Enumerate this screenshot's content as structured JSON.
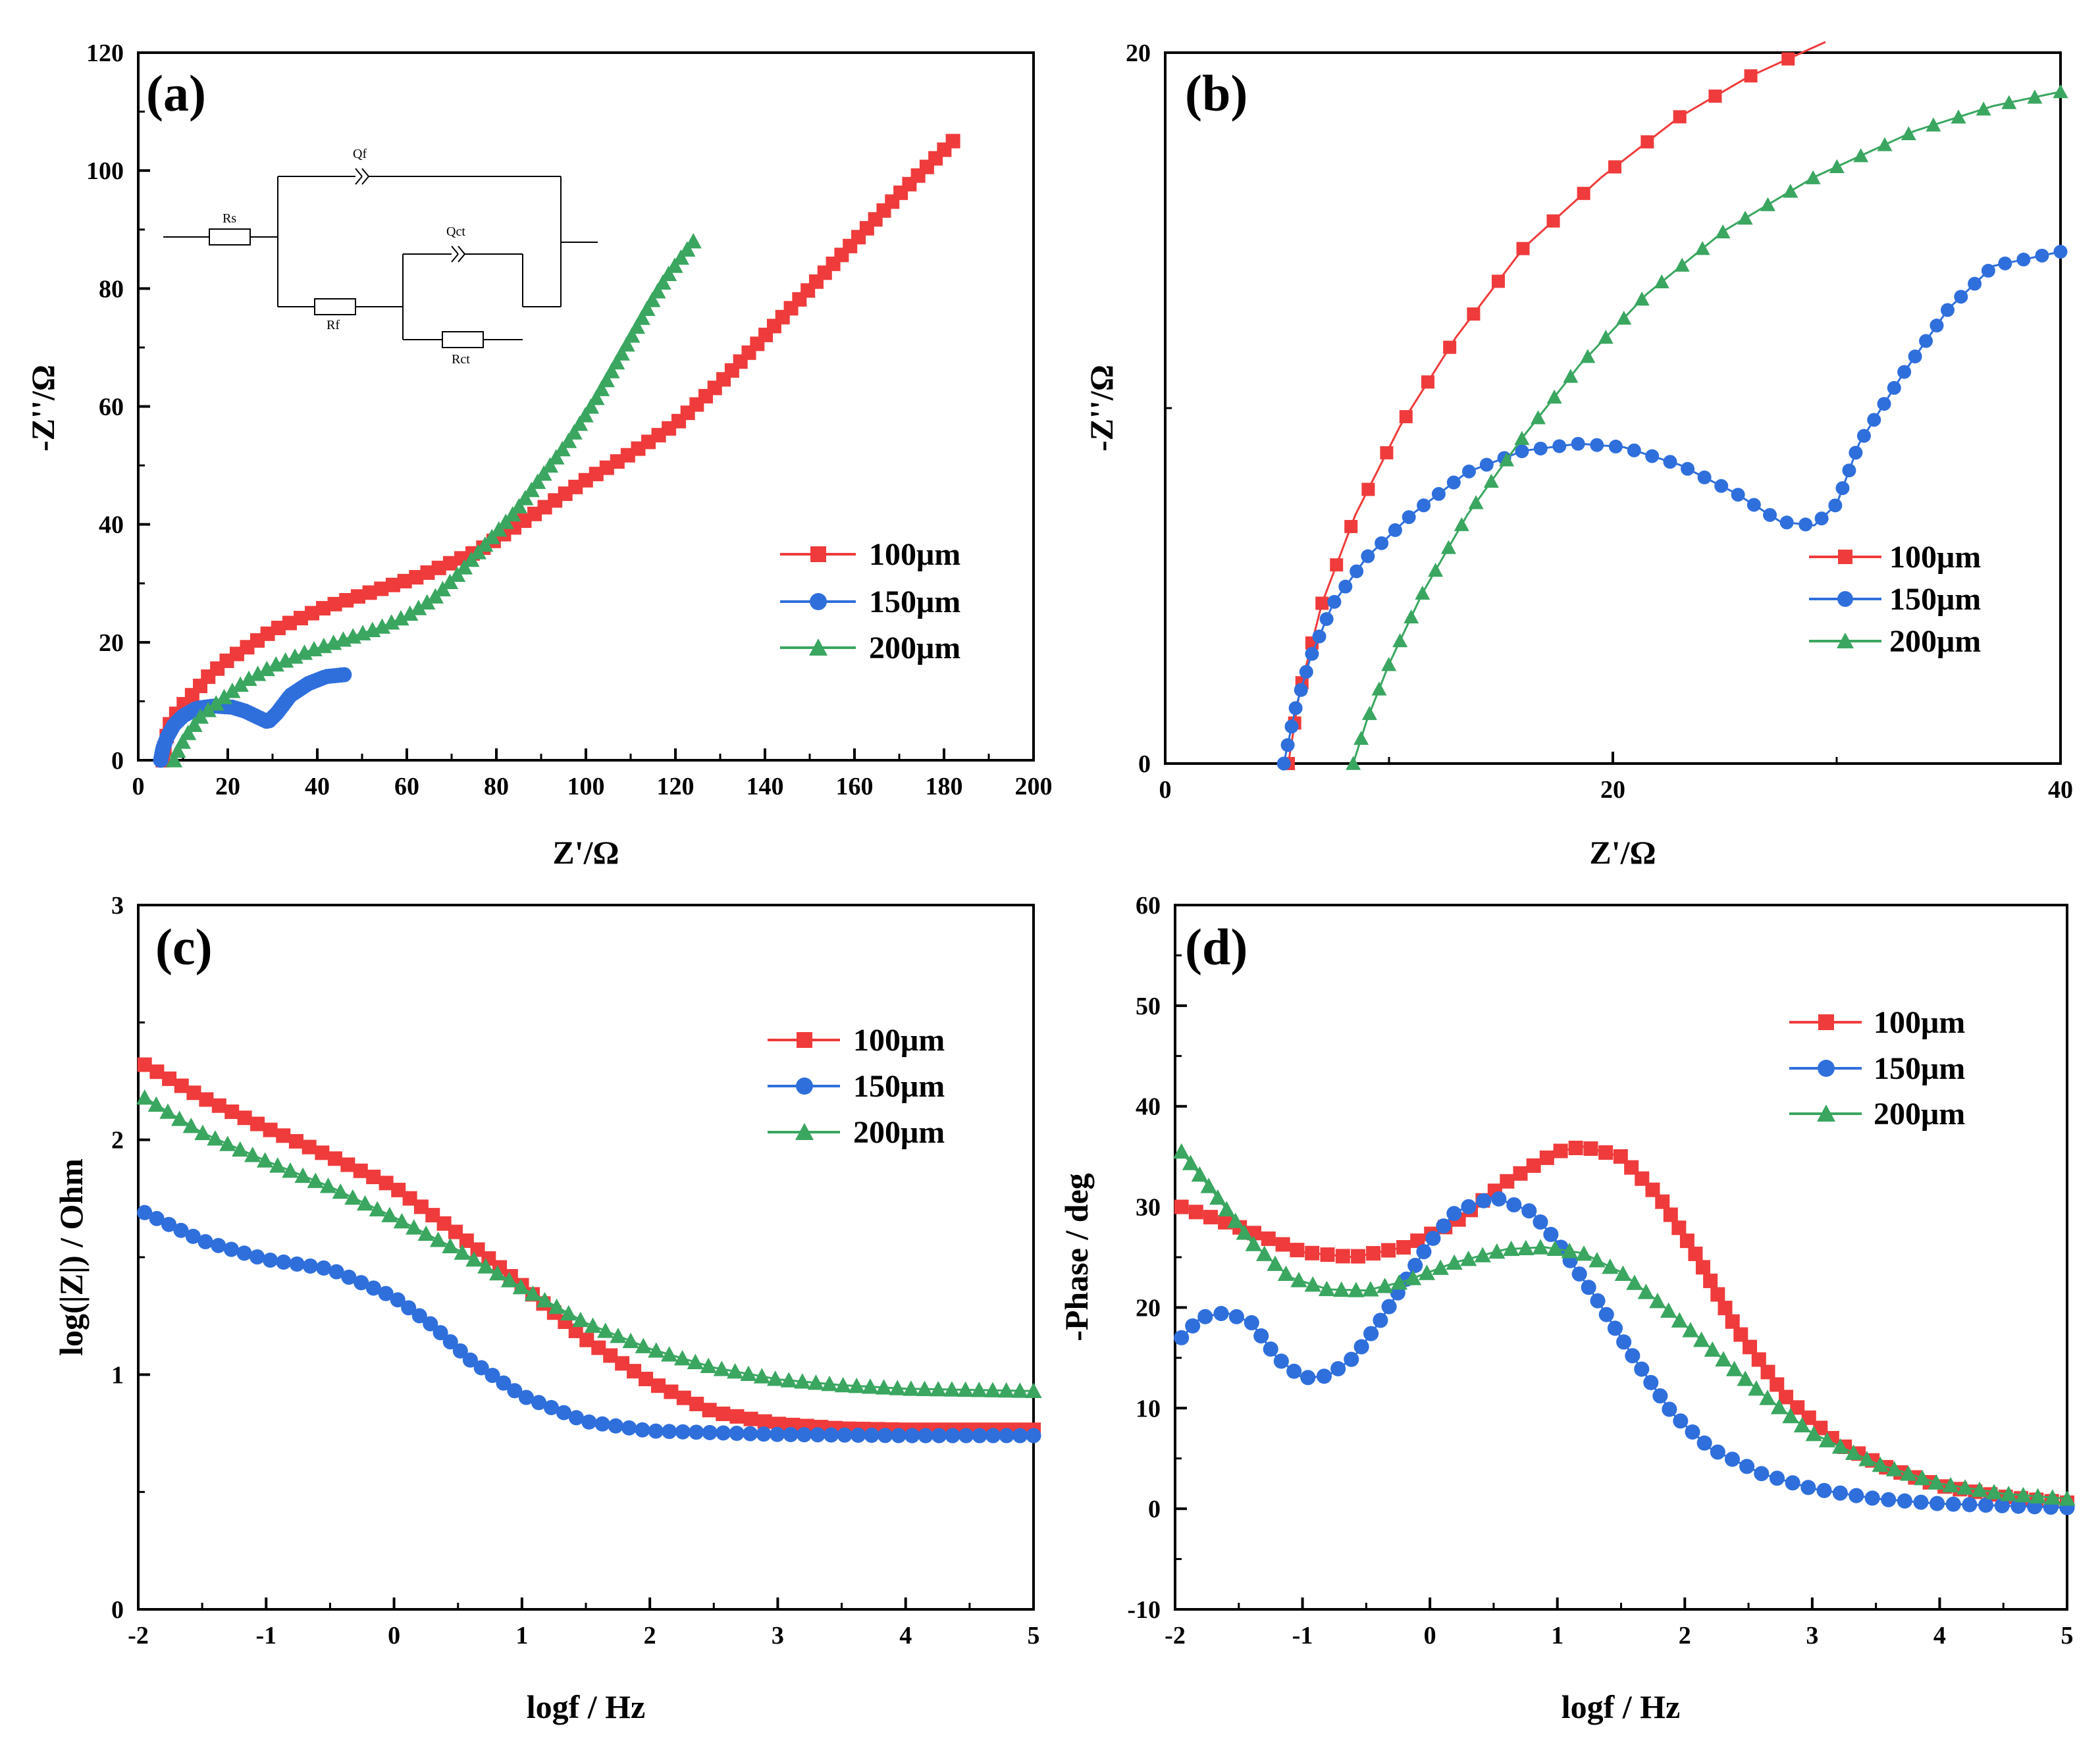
{
  "colors": {
    "s100": "#ef3b3b",
    "s150": "#2f6fdc",
    "s200": "#3aa660"
  },
  "legend": [
    "100μm",
    "150μm",
    "200μm"
  ],
  "circuit_labels": {
    "rs": "Rs",
    "qf": "Qf",
    "rf": "Rf",
    "qct": "Qct",
    "rct": "Rct"
  },
  "chart_data": [
    {
      "type": "scatter",
      "panel": "(a)",
      "title": "",
      "xlabel": "Z'/Ω",
      "ylabel": "-Z''/Ω",
      "xlim": [
        0,
        200
      ],
      "ylim": [
        0,
        120
      ],
      "xticks": [
        0,
        20,
        40,
        60,
        80,
        100,
        120,
        140,
        160,
        180,
        200
      ],
      "yticks": [
        0,
        20,
        40,
        60,
        80,
        100,
        120
      ],
      "legend_position": "right-middle",
      "series": [
        {
          "name": "100μm",
          "marker": "square",
          "density": 85,
          "points": [
            [
              5.5,
              0
            ],
            [
              6,
              3
            ],
            [
              7,
              6
            ],
            [
              9,
              8.5
            ],
            [
              12,
              11
            ],
            [
              16,
              14.5
            ],
            [
              20,
              17
            ],
            [
              25,
              19.5
            ],
            [
              30,
              22
            ],
            [
              36,
              24
            ],
            [
              42,
              26
            ],
            [
              50,
              28
            ],
            [
              56,
              29.5
            ],
            [
              62,
              31
            ],
            [
              70,
              33.5
            ],
            [
              76,
              35.5
            ],
            [
              82,
              38.5
            ],
            [
              88,
              41.5
            ],
            [
              94,
              44.5
            ],
            [
              100,
              47.5
            ],
            [
              110,
              52
            ],
            [
              120,
              57
            ],
            [
              130,
              64
            ],
            [
              140,
              72
            ],
            [
              150,
              80
            ],
            [
              160,
              88
            ],
            [
              170,
              96
            ],
            [
              182,
              105
            ]
          ]
        },
        {
          "name": "150μm",
          "marker": "circle",
          "density": 70,
          "points": [
            [
              5,
              0
            ],
            [
              5.5,
              2
            ],
            [
              6.5,
              4
            ],
            [
              8,
              6
            ],
            [
              10,
              7.5
            ],
            [
              13,
              8.8
            ],
            [
              17,
              9.2
            ],
            [
              21,
              9
            ],
            [
              24,
              8.3
            ],
            [
              27,
              7.2
            ],
            [
              29,
              6.5
            ],
            [
              31,
              8
            ],
            [
              34,
              11
            ],
            [
              38,
              13
            ],
            [
              42,
              14.2
            ],
            [
              46,
              14.5
            ]
          ]
        },
        {
          "name": "200μm",
          "marker": "triangle",
          "density": 75,
          "points": [
            [
              8,
              0
            ],
            [
              9,
              2
            ],
            [
              11,
              4.5
            ],
            [
              14,
              7.5
            ],
            [
              18,
              10
            ],
            [
              24,
              13.5
            ],
            [
              30,
              16
            ],
            [
              38,
              18.5
            ],
            [
              46,
              20.5
            ],
            [
              54,
              22.5
            ],
            [
              60,
              24.5
            ],
            [
              66,
              27.5
            ],
            [
              72,
              32
            ],
            [
              78,
              37
            ],
            [
              84,
              42
            ],
            [
              90,
              48
            ],
            [
              96,
              54
            ],
            [
              102,
              61
            ],
            [
              108,
              69
            ],
            [
              114,
              77
            ],
            [
              118,
              82
            ],
            [
              124,
              88
            ]
          ]
        }
      ]
    },
    {
      "type": "scatter",
      "panel": "(b)",
      "title": "",
      "xlabel": "Z'/Ω",
      "ylabel": "-Z''/Ω",
      "xlim": [
        0,
        40
      ],
      "ylim": [
        0,
        20
      ],
      "xticks": [
        0,
        20,
        40
      ],
      "yticks": [
        0,
        20
      ],
      "legend_position": "right-middle",
      "series": [
        {
          "name": "100μm",
          "marker": "square",
          "density": 24,
          "points": [
            [
              5.5,
              0
            ],
            [
              6,
              2
            ],
            [
              7,
              4.5
            ],
            [
              8.5,
              7
            ],
            [
              10.5,
              9.5
            ],
            [
              13,
              12
            ],
            [
              16,
              14.5
            ],
            [
              19.5,
              16.5
            ],
            [
              23,
              18.2
            ],
            [
              26,
              19.3
            ],
            [
              29.5,
              20.3
            ]
          ]
        },
        {
          "name": "150μm",
          "marker": "circle",
          "density": 60,
          "points": [
            [
              5.3,
              0
            ],
            [
              5.8,
              1.5
            ],
            [
              6.5,
              3
            ],
            [
              7.5,
              4.5
            ],
            [
              9,
              5.8
            ],
            [
              11,
              7
            ],
            [
              13.5,
              8.2
            ],
            [
              16,
              8.8
            ],
            [
              18.5,
              9
            ],
            [
              20.5,
              8.9
            ],
            [
              23,
              8.4
            ],
            [
              25.5,
              7.6
            ],
            [
              27.5,
              6.8
            ],
            [
              29,
              6.7
            ],
            [
              30,
              7.3
            ],
            [
              31,
              9
            ],
            [
              33,
              11
            ],
            [
              35,
              12.8
            ],
            [
              37,
              14
            ],
            [
              40,
              14.4
            ]
          ]
        },
        {
          "name": "200μm",
          "marker": "triangle",
          "density": 40,
          "points": [
            [
              8.4,
              0
            ],
            [
              9,
              1.2
            ],
            [
              10,
              2.8
            ],
            [
              11.5,
              4.8
            ],
            [
              13.5,
              7
            ],
            [
              16,
              9.2
            ],
            [
              18.5,
              11.2
            ],
            [
              21.5,
              13.2
            ],
            [
              25,
              15
            ],
            [
              29,
              16.5
            ],
            [
              33.5,
              17.8
            ],
            [
              37,
              18.5
            ],
            [
              40,
              18.9
            ]
          ]
        }
      ]
    },
    {
      "type": "scatter",
      "panel": "(c)",
      "title": "",
      "xlabel": "logf / Hz",
      "ylabel": "log(|Z|) / Ohm",
      "xlim": [
        -2,
        5
      ],
      "ylim": [
        0,
        3
      ],
      "xticks": [
        -2,
        -1,
        0,
        1,
        2,
        3,
        4,
        5
      ],
      "yticks": [
        0,
        1,
        2,
        3
      ],
      "legend_position": "top-right",
      "series": [
        {
          "name": "100μm",
          "marker": "square",
          "density": 71,
          "points": [
            [
              -1.95,
              2.32
            ],
            [
              -1.5,
              2.18
            ],
            [
              -1,
              2.05
            ],
            [
              -0.5,
              1.93
            ],
            [
              0,
              1.8
            ],
            [
              0.5,
              1.6
            ],
            [
              1,
              1.38
            ],
            [
              1.5,
              1.15
            ],
            [
              2,
              0.97
            ],
            [
              2.5,
              0.84
            ],
            [
              3,
              0.79
            ],
            [
              3.5,
              0.77
            ],
            [
              4,
              0.765
            ],
            [
              5,
              0.765
            ]
          ]
        },
        {
          "name": "150μm",
          "marker": "circle",
          "density": 71,
          "points": [
            [
              -1.95,
              1.69
            ],
            [
              -1.5,
              1.57
            ],
            [
              -1,
              1.49
            ],
            [
              -0.5,
              1.45
            ],
            [
              0,
              1.33
            ],
            [
              0.3,
              1.21
            ],
            [
              0.6,
              1.06
            ],
            [
              1,
              0.91
            ],
            [
              1.5,
              0.8
            ],
            [
              2,
              0.76
            ],
            [
              3,
              0.745
            ],
            [
              4,
              0.74
            ],
            [
              5,
              0.74
            ]
          ]
        },
        {
          "name": "200μm",
          "marker": "triangle",
          "density": 71,
          "points": [
            [
              -1.95,
              2.18
            ],
            [
              -1.5,
              2.03
            ],
            [
              -1,
              1.91
            ],
            [
              -0.5,
              1.8
            ],
            [
              0,
              1.67
            ],
            [
              0.5,
              1.53
            ],
            [
              1,
              1.37
            ],
            [
              1.5,
              1.22
            ],
            [
              2,
              1.11
            ],
            [
              2.5,
              1.03
            ],
            [
              3,
              0.98
            ],
            [
              3.5,
              0.955
            ],
            [
              4,
              0.94
            ],
            [
              5,
              0.93
            ]
          ]
        }
      ]
    },
    {
      "type": "scatter",
      "panel": "(d)",
      "title": "",
      "xlabel": "logf / Hz",
      "ylabel": "-Phase / deg",
      "xlim": [
        -2,
        5
      ],
      "ylim": [
        -10,
        60
      ],
      "xticks": [
        -2,
        -1,
        0,
        1,
        2,
        3,
        4,
        5
      ],
      "yticks": [
        -10,
        0,
        10,
        20,
        30,
        40,
        50,
        60
      ],
      "legend_position": "top-right",
      "series": [
        {
          "name": "100μm",
          "marker": "square",
          "density": 71,
          "points": [
            [
              -1.95,
              30
            ],
            [
              -1.5,
              28
            ],
            [
              -1,
              25.5
            ],
            [
              -0.6,
              25
            ],
            [
              -0.2,
              26
            ],
            [
              0.2,
              28.5
            ],
            [
              0.6,
              32.5
            ],
            [
              1,
              35.5
            ],
            [
              1.2,
              36
            ],
            [
              1.5,
              35
            ],
            [
              1.8,
              31
            ],
            [
              2.1,
              25
            ],
            [
              2.4,
              18
            ],
            [
              2.8,
              11
            ],
            [
              3.2,
              6.5
            ],
            [
              3.6,
              4
            ],
            [
              4,
              2.3
            ],
            [
              4.5,
              1.2
            ],
            [
              5,
              0.6
            ]
          ]
        },
        {
          "name": "150μm",
          "marker": "circle",
          "density": 71,
          "points": [
            [
              -1.95,
              17
            ],
            [
              -1.8,
              19
            ],
            [
              -1.6,
              19.5
            ],
            [
              -1.4,
              18.5
            ],
            [
              -1.2,
              15
            ],
            [
              -1,
              13
            ],
            [
              -0.8,
              13.2
            ],
            [
              -0.6,
              15
            ],
            [
              -0.4,
              18.5
            ],
            [
              -0.2,
              22.5
            ],
            [
              0,
              26.5
            ],
            [
              0.2,
              29.5
            ],
            [
              0.5,
              31
            ],
            [
              0.8,
              29.5
            ],
            [
              1,
              26.5
            ],
            [
              1.3,
              21
            ],
            [
              1.6,
              15
            ],
            [
              1.9,
              9.5
            ],
            [
              2.2,
              6
            ],
            [
              2.6,
              3.5
            ],
            [
              3,
              2
            ],
            [
              3.5,
              1
            ],
            [
              4,
              0.5
            ],
            [
              5,
              0.1
            ]
          ]
        },
        {
          "name": "200μm",
          "marker": "triangle",
          "density": 71,
          "points": [
            [
              -1.95,
              35.5
            ],
            [
              -1.7,
              31.5
            ],
            [
              -1.4,
              26.5
            ],
            [
              -1.1,
              23
            ],
            [
              -0.8,
              21.8
            ],
            [
              -0.5,
              21.7
            ],
            [
              -0.2,
              22.6
            ],
            [
              0.2,
              24.5
            ],
            [
              0.6,
              25.8
            ],
            [
              0.9,
              26
            ],
            [
              1.2,
              25.4
            ],
            [
              1.5,
              23.5
            ],
            [
              1.8,
              20.5
            ],
            [
              2.2,
              16
            ],
            [
              2.6,
              11.5
            ],
            [
              3,
              7.5
            ],
            [
              3.5,
              4.5
            ],
            [
              4,
              2.5
            ],
            [
              4.5,
              1.5
            ],
            [
              5,
              1
            ]
          ]
        }
      ]
    }
  ]
}
